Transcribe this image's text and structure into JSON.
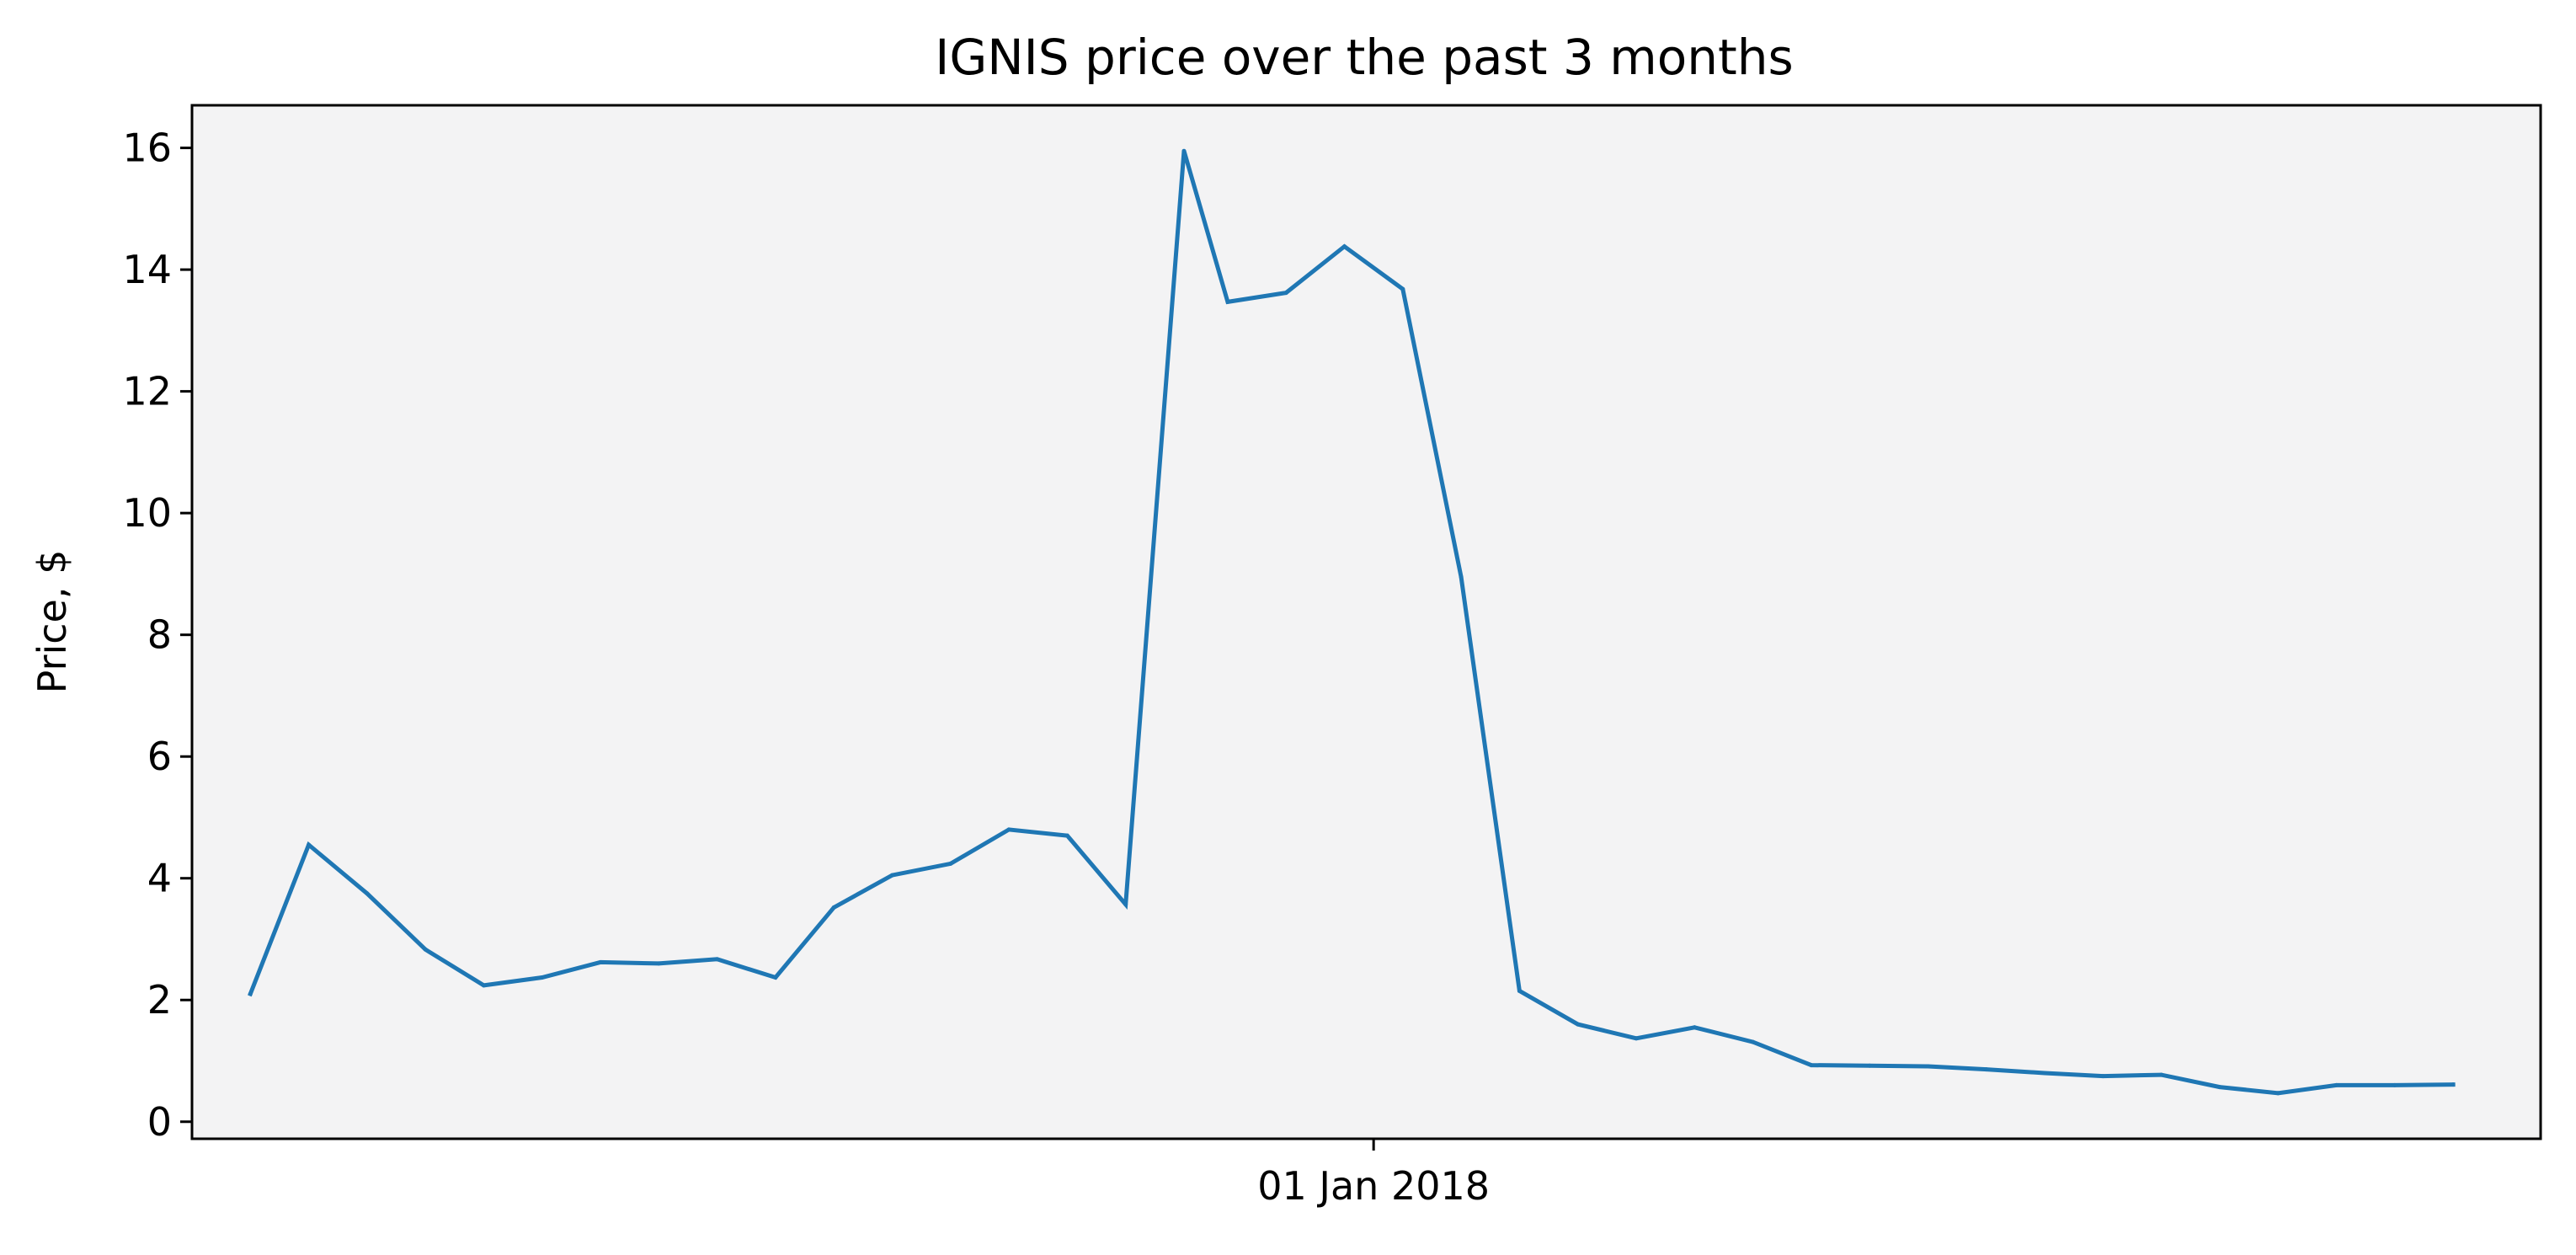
{
  "chart_data": {
    "type": "line",
    "title": "IGNIS price over the past 3 months",
    "xlabel": "",
    "ylabel": "Price, $",
    "grid": false,
    "ylim": [
      -0.28,
      16.7
    ],
    "yticks": [
      0,
      2,
      4,
      6,
      8,
      10,
      12,
      14,
      16
    ],
    "xlim": [
      "2017-10-12",
      "2018-03-22"
    ],
    "xticks": [
      {
        "x": "2018-01-01",
        "label": "01 Jan 2018"
      }
    ],
    "colors": {
      "line": "#1f77b4",
      "plot_background": "#f3f3f4",
      "axes": "#000000"
    },
    "series": [
      {
        "x": [
          "2017-10-16",
          "2017-10-20",
          "2017-10-24",
          "2017-10-28",
          "2017-11-01",
          "2017-11-05",
          "2017-11-09",
          "2017-11-13",
          "2017-11-17",
          "2017-11-21",
          "2017-11-25",
          "2017-11-29",
          "2017-12-03",
          "2017-12-07",
          "2017-12-11",
          "2017-12-15",
          "2017-12-19",
          "2017-12-22",
          "2017-12-26",
          "2017-12-30",
          "2018-01-03",
          "2018-01-07",
          "2018-01-11",
          "2018-01-15",
          "2018-01-19",
          "2018-01-23",
          "2018-01-27",
          "2018-01-31",
          "2018-02-04",
          "2018-02-08",
          "2018-02-12",
          "2018-02-16",
          "2018-02-20",
          "2018-02-24",
          "2018-02-28",
          "2018-03-04",
          "2018-03-08",
          "2018-03-12",
          "2018-03-16"
        ],
        "y": [
          2.1,
          4.55,
          3.75,
          2.83,
          2.24,
          2.37,
          2.62,
          2.6,
          2.67,
          2.37,
          3.52,
          4.05,
          4.24,
          4.8,
          4.7,
          3.57,
          15.95,
          13.47,
          13.62,
          14.38,
          13.68,
          8.95,
          2.15,
          1.6,
          1.37,
          1.55,
          1.31,
          0.93,
          0.92,
          0.91,
          0.86,
          0.8,
          0.75,
          0.77,
          0.57,
          0.47,
          0.6,
          0.6,
          0.61
        ]
      }
    ]
  }
}
